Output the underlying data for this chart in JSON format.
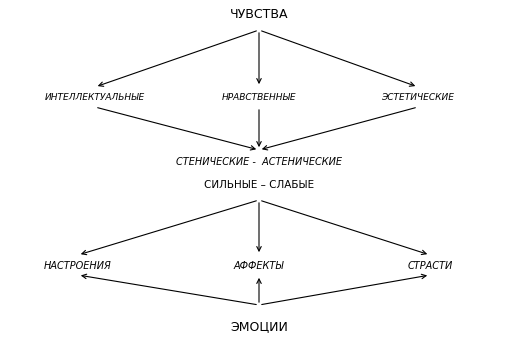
{
  "title_top": "ЧУВСТВА",
  "title_bottom": "ЭМОЦИИ",
  "row2_left": "ИНТЕЛЛЕКТУАЛЬНЫЕ",
  "row2_center": "НРАВСТВЕННЫЕ",
  "row2_right": "ЭСТЕТИЧЕСКИЕ",
  "row3": "СТЕНИЧЕСКИЕ -  АСТЕНИЧЕСКИЕ",
  "row4": "СИЛЬНЫЕ – СЛАБЫЕ",
  "row5_left": "НАСТРОЕНИЯ",
  "row5_center": "АФФЕКТЫ",
  "row5_right": "СТРАСТИ",
  "bg_color": "#ffffff",
  "text_color": "#000000"
}
